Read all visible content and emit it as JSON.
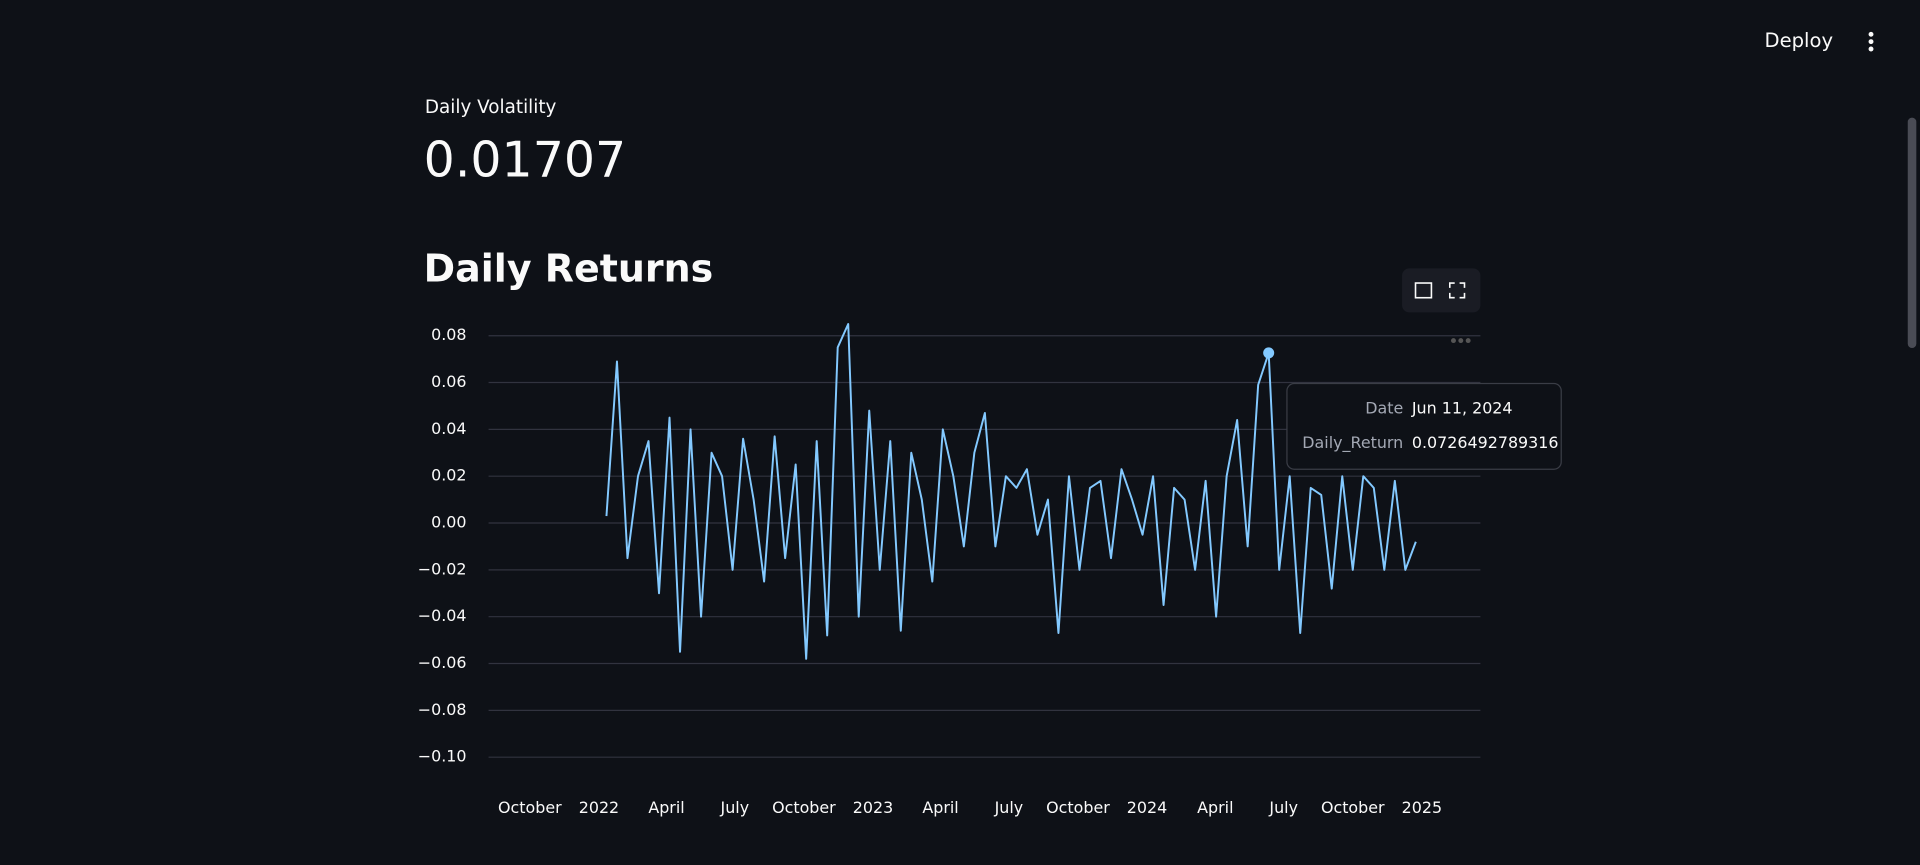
{
  "header": {
    "deploy": "Deploy"
  },
  "metric": {
    "label": "Daily Volatility",
    "value": "0.01707"
  },
  "tooltip": {
    "date_label": "Date",
    "date": "Jun 11, 2024",
    "value_label": "Daily_Return"
  },
  "chart_data": {
    "type": "line",
    "title": "Daily Returns",
    "color": "#83c9ff",
    "grid": true,
    "highlight": 63,
    "x": [
      "2022-01-11",
      "2022-01-25",
      "2022-02-08",
      "2022-02-22",
      "2022-03-08",
      "2022-03-22",
      "2022-04-05",
      "2022-04-19",
      "2022-05-03",
      "2022-05-17",
      "2022-05-31",
      "2022-06-14",
      "2022-06-28",
      "2022-07-12",
      "2022-07-26",
      "2022-08-09",
      "2022-08-23",
      "2022-09-06",
      "2022-09-20",
      "2022-10-04",
      "2022-10-18",
      "2022-11-01",
      "2022-11-15",
      "2022-11-29",
      "2022-12-13",
      "2022-12-27",
      "2023-01-10",
      "2023-01-24",
      "2023-02-07",
      "2023-02-21",
      "2023-03-07",
      "2023-03-21",
      "2023-04-04",
      "2023-04-18",
      "2023-05-02",
      "2023-05-16",
      "2023-05-30",
      "2023-06-13",
      "2023-06-27",
      "2023-07-11",
      "2023-07-25",
      "2023-08-08",
      "2023-08-22",
      "2023-09-05",
      "2023-09-19",
      "2023-10-03",
      "2023-10-17",
      "2023-10-31",
      "2023-11-14",
      "2023-11-28",
      "2023-12-12",
      "2023-12-26",
      "2024-01-09",
      "2024-01-23",
      "2024-02-06",
      "2024-02-20",
      "2024-03-05",
      "2024-03-19",
      "2024-04-02",
      "2024-04-16",
      "2024-04-30",
      "2024-05-14",
      "2024-05-28",
      "2024-06-11",
      "2024-06-25",
      "2024-07-09",
      "2024-07-23",
      "2024-08-06",
      "2024-08-20",
      "2024-09-03",
      "2024-09-17",
      "2024-10-01",
      "2024-10-15",
      "2024-10-29",
      "2024-11-12",
      "2024-11-26",
      "2024-12-10",
      "2024-12-24"
    ],
    "values": [
      0.003,
      0.069,
      -0.015,
      0.02,
      0.035,
      -0.03,
      0.045,
      -0.055,
      0.04,
      -0.04,
      0.03,
      0.02,
      -0.02,
      0.036,
      0.01,
      -0.025,
      0.037,
      -0.015,
      0.025,
      -0.058,
      0.035,
      -0.048,
      0.075,
      0.085,
      -0.04,
      0.048,
      -0.02,
      0.035,
      -0.046,
      0.03,
      0.01,
      -0.025,
      0.04,
      0.02,
      -0.01,
      0.03,
      0.047,
      -0.01,
      0.02,
      0.015,
      0.023,
      -0.005,
      0.01,
      -0.047,
      0.02,
      -0.02,
      0.015,
      0.018,
      -0.015,
      0.023,
      0.01,
      -0.005,
      0.02,
      -0.035,
      0.015,
      0.01,
      -0.02,
      0.018,
      -0.04,
      0.02,
      0.044,
      -0.01,
      0.059,
      0.0726492789316,
      -0.02,
      0.02,
      -0.047,
      0.015,
      0.012,
      -0.028,
      0.02,
      -0.02,
      0.02,
      0.015,
      -0.02,
      0.018,
      -0.02,
      -0.008
    ],
    "xlim": [
      "2021-08-07",
      "2025-03-20"
    ],
    "xticks": [
      {
        "value": "2021-10-01",
        "label": "October"
      },
      {
        "value": "2022-01-01",
        "label": "2022"
      },
      {
        "value": "2022-04-01",
        "label": "April"
      },
      {
        "value": "2022-07-01",
        "label": "July"
      },
      {
        "value": "2022-10-01",
        "label": "October"
      },
      {
        "value": "2023-01-01",
        "label": "2023"
      },
      {
        "value": "2023-04-01",
        "label": "April"
      },
      {
        "value": "2023-07-01",
        "label": "July"
      },
      {
        "value": "2023-10-01",
        "label": "October"
      },
      {
        "value": "2024-01-01",
        "label": "2024"
      },
      {
        "value": "2024-04-01",
        "label": "April"
      },
      {
        "value": "2024-07-01",
        "label": "July"
      },
      {
        "value": "2024-10-01",
        "label": "October"
      },
      {
        "value": "2025-01-01",
        "label": "2025"
      }
    ],
    "ylim": [
      -0.1,
      0.08
    ],
    "yticks": [
      0.08,
      0.06,
      0.04,
      0.02,
      {
        "value": 0,
        "label": "0.00"
      },
      {
        "value": -0.02,
        "label": "−0.02"
      },
      {
        "value": -0.04,
        "label": "−0.04"
      },
      {
        "value": -0.06,
        "label": "−0.06"
      },
      {
        "value": -0.08,
        "label": "−0.08"
      },
      {
        "value": -0.1,
        "label": "−0.10"
      }
    ]
  }
}
